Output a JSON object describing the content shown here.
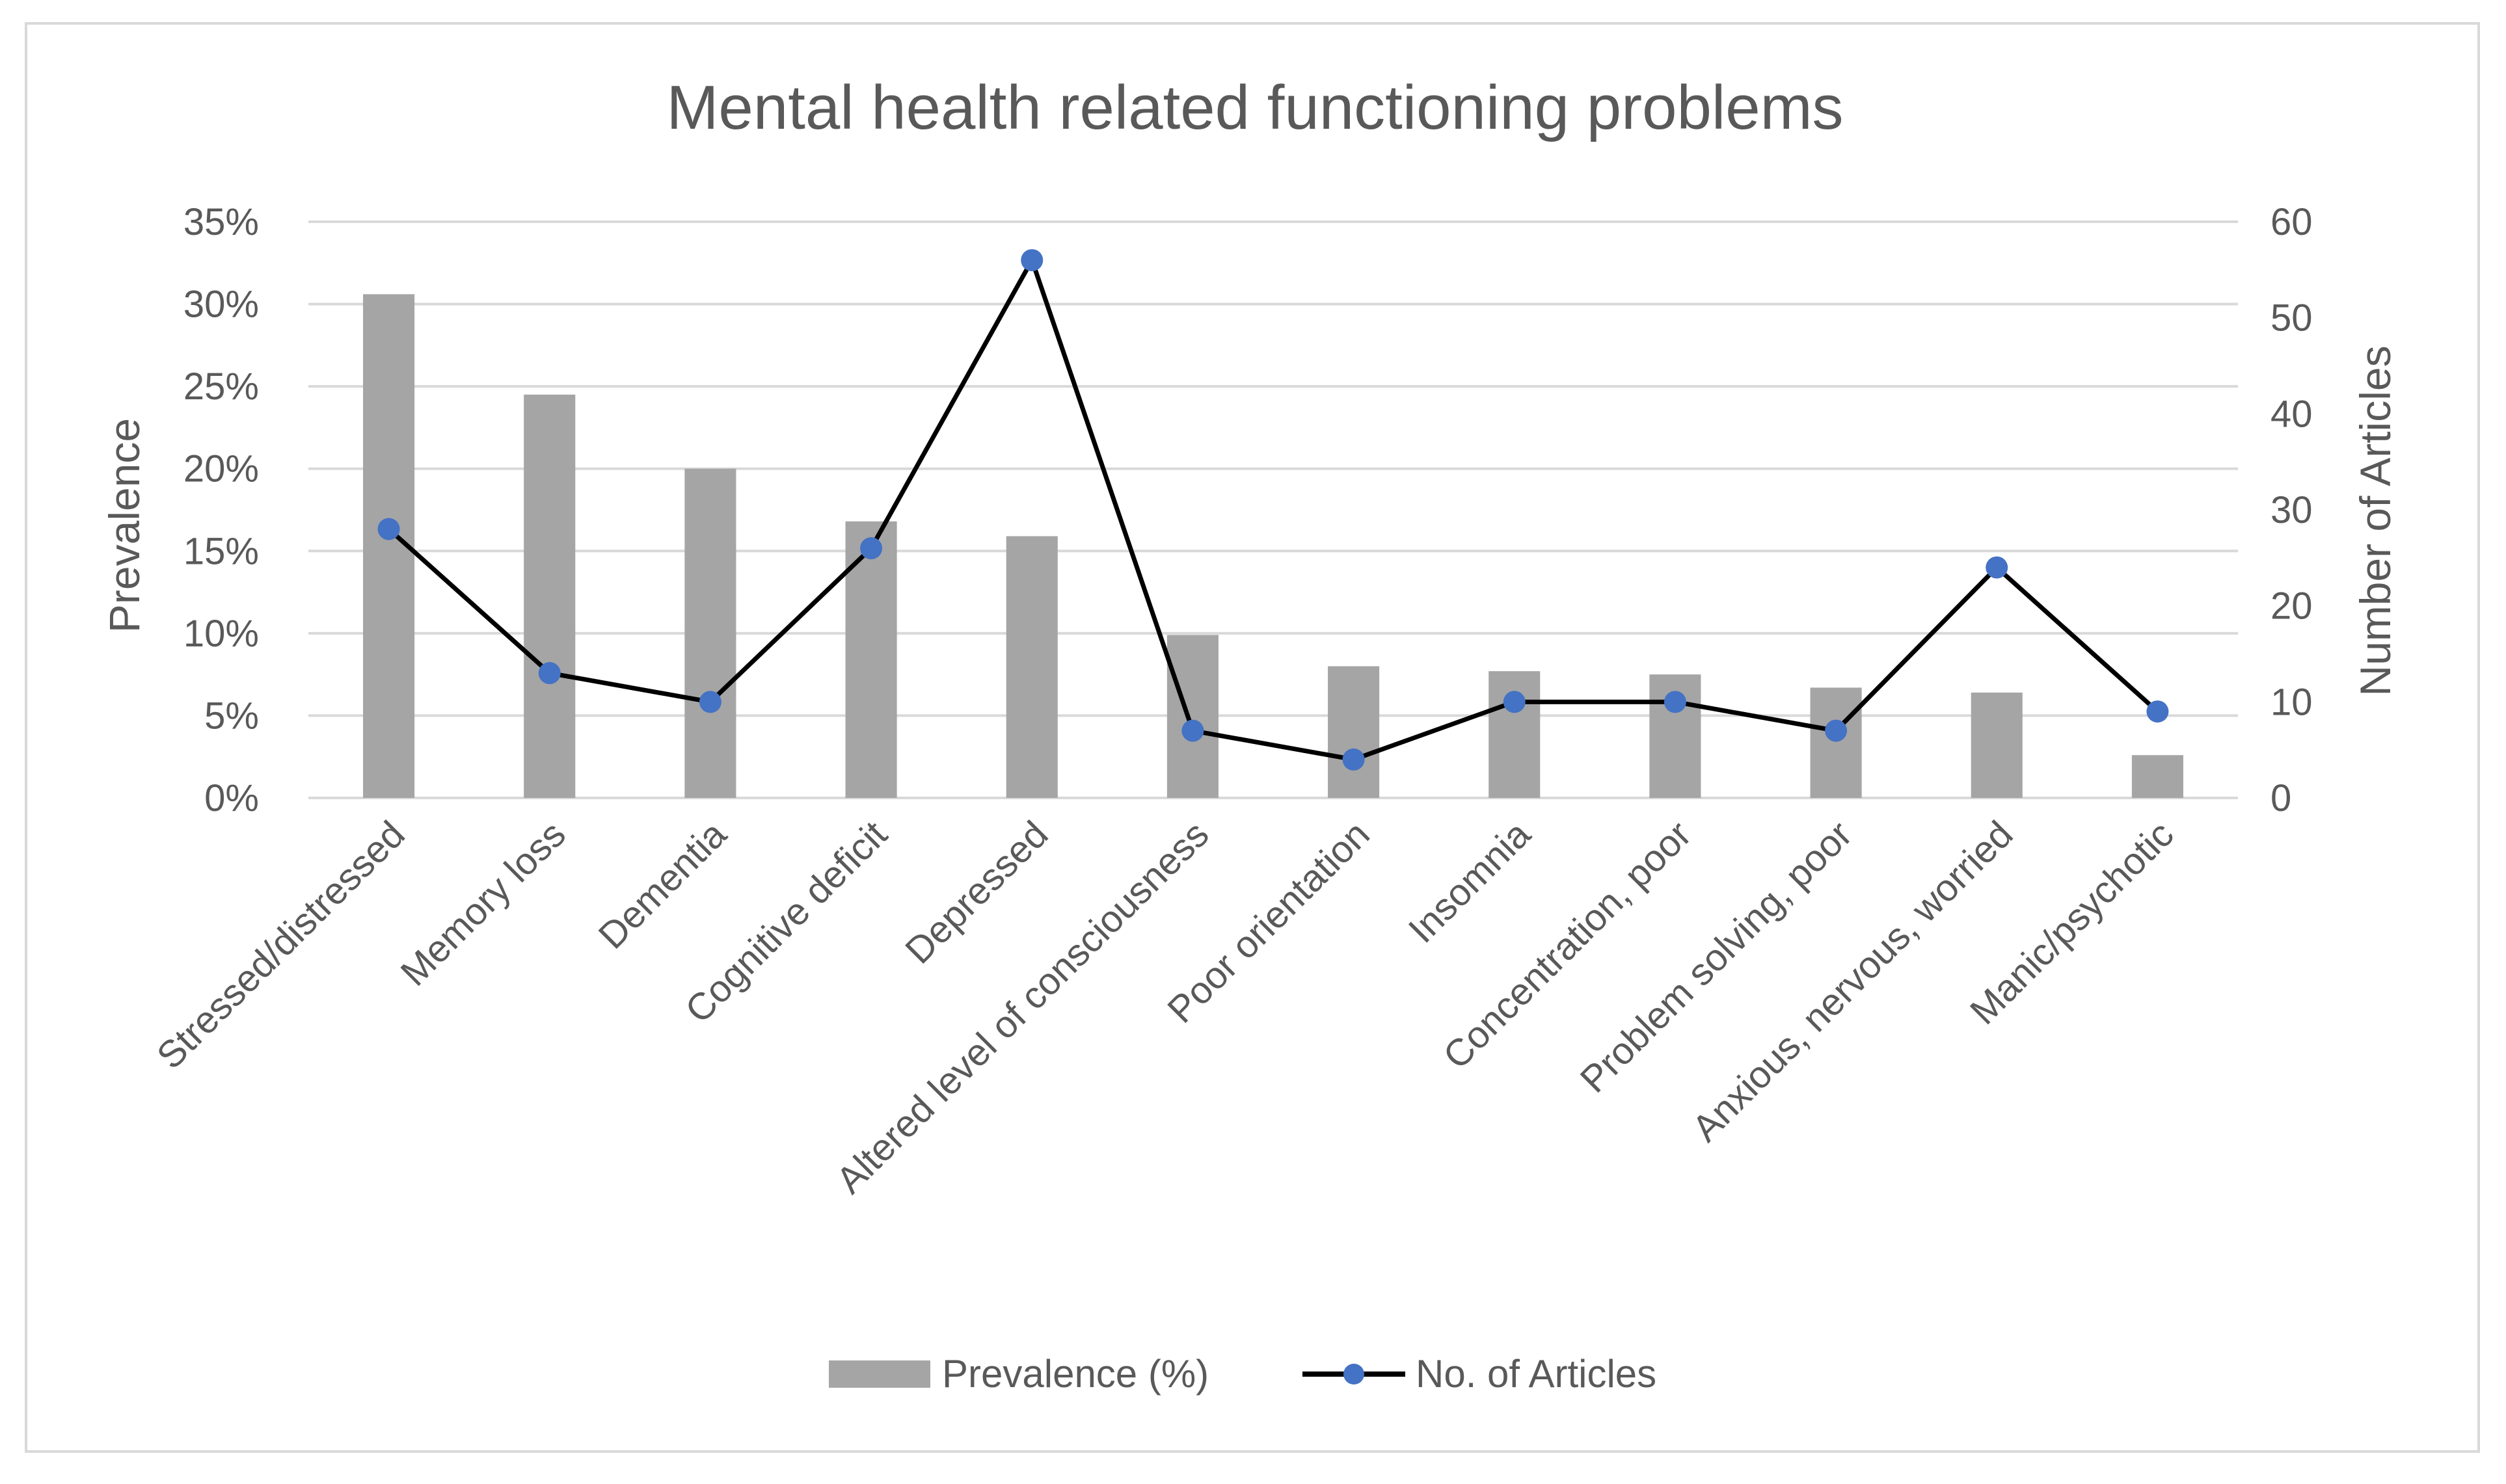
{
  "chart_data": {
    "type": "bar+line",
    "title": "Mental health related functioning problems",
    "categories": [
      "Stressed/distressed",
      "Memory loss",
      "Dementia",
      "Cognitive deficit",
      "Depressed",
      "Altered level of consciousness",
      "Poor orientation",
      "Insomnia",
      "Concentration, poor",
      "Problem solving, poor",
      "Anxious, nervous, worried",
      "Manic/psychotic"
    ],
    "series": [
      {
        "name": "Prevalence (%)",
        "type": "bar",
        "axis": "left",
        "color": "#a5a5a5",
        "values": [
          30.6,
          24.5,
          20.0,
          16.8,
          15.9,
          9.9,
          8.0,
          7.7,
          7.5,
          6.7,
          6.4,
          2.6
        ]
      },
      {
        "name": "No. of Articles",
        "type": "line",
        "axis": "right",
        "color": "#000000",
        "marker_color": "#4472c4",
        "values": [
          28,
          13,
          10,
          26,
          56,
          7,
          4,
          10,
          10,
          7,
          24,
          9
        ]
      }
    ],
    "y_left": {
      "label": "Prevalence",
      "min": 0,
      "max": 35,
      "step": 5,
      "ticks": [
        "0%",
        "5%",
        "10%",
        "15%",
        "20%",
        "25%",
        "30%",
        "35%"
      ]
    },
    "y_right": {
      "label": "Number of Articles",
      "min": 0,
      "max": 60,
      "step": 10,
      "ticks": [
        "0",
        "10",
        "20",
        "30",
        "40",
        "50",
        "60"
      ]
    },
    "grid": true,
    "legend": {
      "position": "bottom",
      "items": [
        "Prevalence (%)",
        "No. of Articles"
      ]
    }
  }
}
